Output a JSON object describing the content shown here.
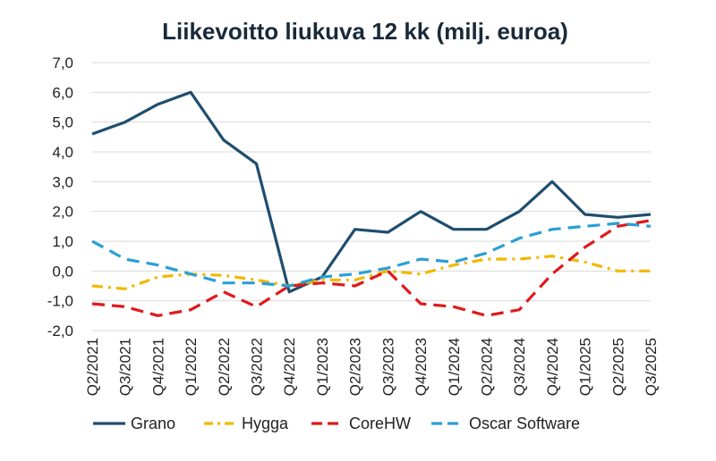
{
  "chart_data": {
    "type": "line",
    "title": "Liikevoitto liukuva 12 kk (milj. euroa)",
    "xlabel": "",
    "ylabel": "",
    "categories": [
      "Q2/2021",
      "Q3/2021",
      "Q4/2021",
      "Q1/2022",
      "Q2/2022",
      "Q3/2022",
      "Q4/2022",
      "Q1/2023",
      "Q2/2023",
      "Q3/2023",
      "Q4/2023",
      "Q1/2024",
      "Q2/2024",
      "Q3/2024",
      "Q4/2024",
      "Q1/2025",
      "Q2/2025",
      "Q3/2025"
    ],
    "ylim": [
      -2.0,
      7.0
    ],
    "yticks": [
      "-2,0",
      "-1,0",
      "0,0",
      "1,0",
      "2,0",
      "3,0",
      "4,0",
      "5,0",
      "6,0",
      "7,0"
    ],
    "grid": true,
    "legend_position": "bottom",
    "series": [
      {
        "name": "Grano",
        "color": "#1f4e6e",
        "dash": "solid",
        "values": [
          4.6,
          5.0,
          5.6,
          6.0,
          4.4,
          3.6,
          -0.7,
          -0.2,
          1.4,
          1.3,
          2.0,
          1.4,
          1.4,
          2.0,
          3.0,
          1.9,
          1.8,
          1.9
        ]
      },
      {
        "name": "Hygga",
        "color": "#f2b800",
        "dash": "dashdot",
        "values": [
          -0.5,
          -0.6,
          -0.2,
          -0.1,
          -0.15,
          -0.3,
          -0.5,
          -0.3,
          -0.3,
          0.0,
          -0.1,
          0.2,
          0.4,
          0.4,
          0.5,
          0.3,
          0.0,
          0.0
        ]
      },
      {
        "name": "CoreHW",
        "color": "#e0191b",
        "dash": "dash",
        "values": [
          -1.1,
          -1.2,
          -1.5,
          -1.3,
          -0.7,
          -1.2,
          -0.5,
          -0.4,
          -0.5,
          0.0,
          -1.1,
          -1.2,
          -1.5,
          -1.3,
          -0.1,
          0.8,
          1.5,
          1.7
        ]
      },
      {
        "name": "Oscar Software",
        "color": "#2a9fd6",
        "dash": "dash",
        "values": [
          1.0,
          0.4,
          0.2,
          -0.1,
          -0.4,
          -0.4,
          -0.5,
          -0.2,
          -0.1,
          0.1,
          0.4,
          0.3,
          0.6,
          1.1,
          1.4,
          1.5,
          1.6,
          1.5
        ]
      }
    ]
  }
}
